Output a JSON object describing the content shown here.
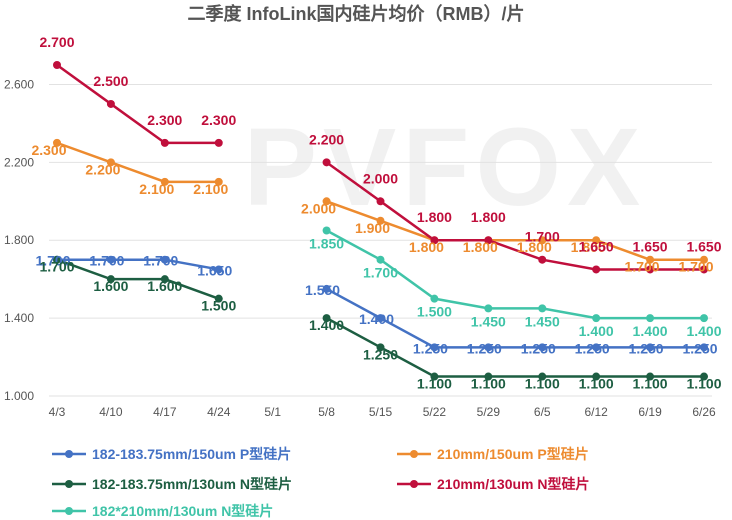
{
  "chart_data": {
    "type": "line",
    "title": "二季度 InfoLink国内硅片均价（RMB）/片",
    "watermark": "PVFOX",
    "categories": [
      "4/3",
      "4/10",
      "4/17",
      "4/24",
      "5/1",
      "5/8",
      "5/15",
      "5/22",
      "5/29",
      "6/5",
      "6/12",
      "6/19",
      "6/26"
    ],
    "ylim": [
      1.0,
      2.7
    ],
    "yticks": [
      "1.000",
      "1.400",
      "1.800",
      "2.200",
      "2.600"
    ],
    "ytick_values": [
      1.0,
      1.4,
      1.8,
      2.2,
      2.6
    ],
    "grid": "horizontal",
    "legend_position": "bottom",
    "series": [
      {
        "name": "182-183.75mm/150um P型硅片",
        "color": "#4472c4",
        "values": [
          1.7,
          1.7,
          1.7,
          1.65,
          null,
          1.55,
          1.4,
          1.25,
          1.25,
          1.25,
          1.25,
          1.25,
          1.25
        ],
        "labels": [
          "1.700",
          "1.700",
          "1.700",
          "1.650",
          "",
          "1.550",
          "1.400",
          "1.250",
          "1.250",
          "1.250",
          "1.250",
          "1.250",
          "1.250"
        ]
      },
      {
        "name": "210mm/150um P型硅片",
        "color": "#ed8b2f",
        "values": [
          2.3,
          2.2,
          2.1,
          2.1,
          null,
          2.0,
          1.9,
          1.8,
          1.8,
          1.8,
          1.8,
          1.7,
          1.7
        ],
        "labels": [
          "2.300",
          "2.200",
          "2.100",
          "2.100",
          "",
          "2.000",
          "1.900",
          "1.800",
          "1.800",
          "1.800",
          "1.800",
          "1.700",
          "1.700"
        ]
      },
      {
        "name": "182-183.75mm/130um N型硅片",
        "color": "#1d5e42",
        "values": [
          1.7,
          1.6,
          1.6,
          1.5,
          null,
          1.4,
          1.25,
          1.1,
          1.1,
          1.1,
          1.1,
          1.1,
          1.1
        ],
        "labels": [
          "1.700",
          "1.600",
          "1.600",
          "1.500",
          "",
          "1.400",
          "1.250",
          "1.100",
          "1.100",
          "1.100",
          "1.100",
          "1.100",
          "1.100"
        ]
      },
      {
        "name": "210mm/130um N型硅片",
        "color": "#c00f3c",
        "values": [
          2.7,
          2.5,
          2.3,
          2.3,
          null,
          2.2,
          2.0,
          1.8,
          1.8,
          1.7,
          1.65,
          1.65,
          1.65
        ],
        "labels": [
          "2.700",
          "2.500",
          "2.300",
          "2.300",
          "",
          "2.200",
          "2.000",
          "1.800",
          "1.800",
          "1.700",
          "1.650",
          "1.650",
          "1.650"
        ]
      },
      {
        "name": "182*210mm/130um N型硅片",
        "color": "#40c4a8",
        "values": [
          null,
          null,
          null,
          null,
          null,
          1.85,
          1.7,
          1.5,
          1.45,
          1.45,
          1.4,
          1.4,
          1.4
        ],
        "labels": [
          "",
          "",
          "",
          "",
          "",
          "1.850",
          "1.700",
          "1.500",
          "1.450",
          "1.450",
          "1.400",
          "1.400",
          "1.400"
        ]
      }
    ]
  }
}
